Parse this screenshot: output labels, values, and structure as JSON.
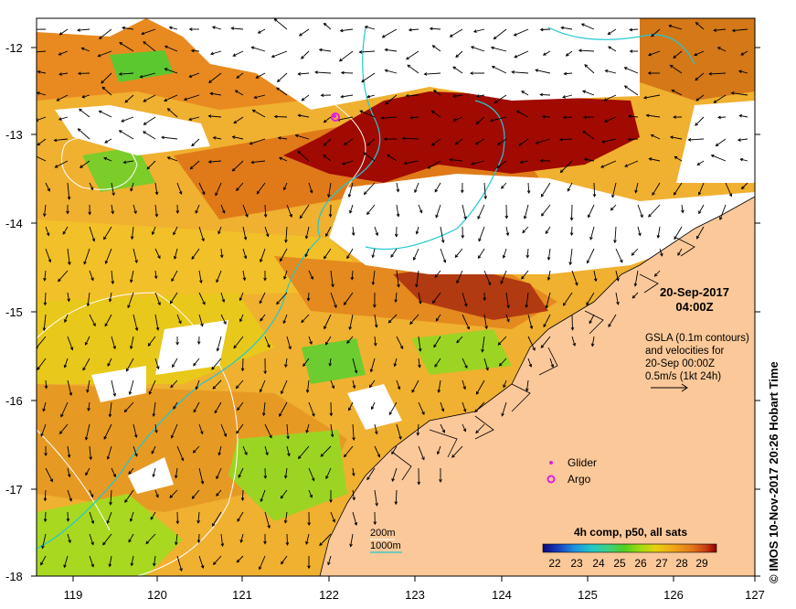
{
  "map": {
    "lon_ticks": [
      "119",
      "120",
      "121",
      "122",
      "123",
      "124",
      "125",
      "126",
      "127"
    ],
    "lat_ticks": [
      "-12",
      "-13",
      "-14",
      "-15",
      "-16",
      "-17",
      "-18"
    ],
    "lon_range": [
      118.6,
      127
    ],
    "lat_range": [
      -18,
      -11.75
    ],
    "colors": {
      "land": "#fbc899",
      "no_data": "#ffffff",
      "contour_gsla": "#ffffff",
      "isobath_200m": "#ffffff",
      "isobath_1000m": "#22c8d0",
      "glider": "#e020e0",
      "argo": "#e020e0",
      "vector": "#000000",
      "coastline": "#000000"
    }
  },
  "annotations": {
    "date": "20-Sep-2017",
    "time": "04:00Z",
    "gsla_line1": "GSLA (0.1m contours)",
    "gsla_line2": "and velocities for",
    "gsla_line3": "20-Sep 00:00Z",
    "gsla_line4": "0.5m/s (1kt 24h)"
  },
  "legend": {
    "glider_label": "Glider",
    "argo_label": "Argo",
    "isobath_200_label": "200m",
    "isobath_1000_label": "1000m"
  },
  "colorbar": {
    "title": "4h comp, p50, all sats",
    "ticks": [
      "22",
      "23",
      "24",
      "25",
      "26",
      "27",
      "28",
      "29"
    ],
    "colors": [
      "#08087a",
      "#1a3fc0",
      "#1e90e0",
      "#20c8c8",
      "#40d080",
      "#50d020",
      "#a0dc10",
      "#e8d010",
      "#f0a818",
      "#e07818",
      "#c83c10",
      "#8c0000"
    ]
  },
  "credit": "© IMOS 10-Nov-2017 20:26 Hobart Time"
}
